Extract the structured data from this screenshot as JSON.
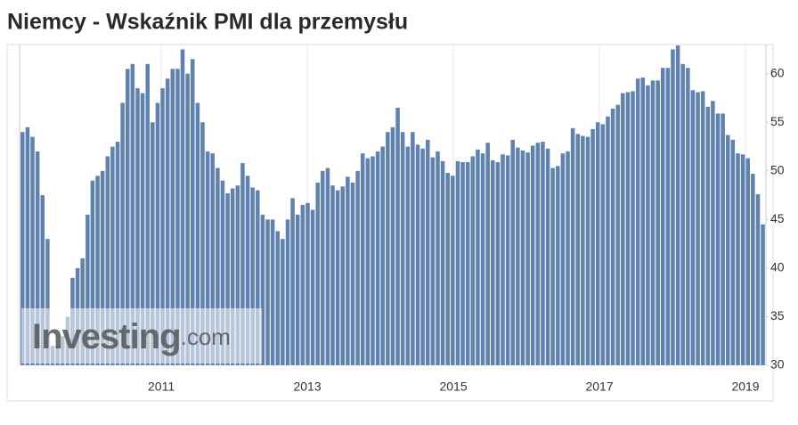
{
  "chart_data": {
    "type": "bar",
    "title": "Niemcy - Wskaźnik PMI dla przemysłu",
    "watermark": {
      "brand": "Investing",
      "suffix": ".com"
    },
    "color": "#5f82b0",
    "grid": true,
    "y_axis_side": "right",
    "x": [
      2009.1,
      2009.169,
      2009.237,
      2009.306,
      2009.374,
      2009.443,
      2009.511,
      2009.58,
      2009.648,
      2009.717,
      2009.785,
      2009.854,
      2009.922,
      2009.991,
      2010.059,
      2010.128,
      2010.196,
      2010.265,
      2010.333,
      2010.402,
      2010.47,
      2010.539,
      2010.607,
      2010.676,
      2010.744,
      2010.813,
      2010.881,
      2010.95,
      2011.018,
      2011.087,
      2011.155,
      2011.224,
      2011.292,
      2011.361,
      2011.429,
      2011.498,
      2011.566,
      2011.635,
      2011.703,
      2011.772,
      2011.84,
      2011.909,
      2011.977,
      2012.046,
      2012.114,
      2012.183,
      2012.251,
      2012.32,
      2012.388,
      2012.457,
      2012.525,
      2012.594,
      2012.662,
      2012.731,
      2012.799,
      2012.868,
      2012.936,
      2013.005,
      2013.073,
      2013.142,
      2013.21,
      2013.279,
      2013.347,
      2013.416,
      2013.484,
      2013.553,
      2013.621,
      2013.69,
      2013.758,
      2013.827,
      2013.895,
      2013.964,
      2014.032,
      2014.101,
      2014.169,
      2014.238,
      2014.306,
      2014.375,
      2014.443,
      2014.512,
      2014.58,
      2014.649,
      2014.717,
      2014.786,
      2014.854,
      2014.923,
      2014.991,
      2015.06,
      2015.128,
      2015.197,
      2015.265,
      2015.334,
      2015.402,
      2015.471,
      2015.539,
      2015.608,
      2015.676,
      2015.745,
      2015.813,
      2015.882,
      2015.95,
      2016.019,
      2016.087,
      2016.156,
      2016.224,
      2016.293,
      2016.361,
      2016.43,
      2016.498,
      2016.567,
      2016.635,
      2016.704,
      2016.772,
      2016.841,
      2016.909,
      2016.978,
      2017.046,
      2017.115,
      2017.183,
      2017.252,
      2017.32,
      2017.389,
      2017.457,
      2017.526,
      2017.594,
      2017.663,
      2017.731,
      2017.8,
      2017.868,
      2017.937,
      2018.005,
      2018.074,
      2018.142,
      2018.211,
      2018.279,
      2018.348,
      2018.416,
      2018.485,
      2018.553,
      2018.622,
      2018.69,
      2018.759,
      2018.827,
      2018.896,
      2018.964,
      2019.033,
      2019.101,
      2019.17,
      2019.238
    ],
    "values": [
      54,
      54.5,
      53.5,
      52,
      47.5,
      43,
      32,
      32,
      33,
      35,
      39,
      40,
      41,
      45.5,
      49,
      49.5,
      50,
      51.5,
      52.5,
      53,
      57,
      60.5,
      61,
      58.5,
      58,
      61,
      55,
      57,
      58.5,
      59.5,
      60.5,
      60.5,
      62.5,
      60,
      61.5,
      57,
      55,
      52,
      51.8,
      50.3,
      49,
      47.7,
      48.2,
      48.5,
      50.8,
      49.5,
      48.3,
      48,
      45.5,
      45,
      45,
      43.8,
      43,
      45,
      47.2,
      45.5,
      46.5,
      46.7,
      46,
      48.8,
      50,
      50.3,
      48.5,
      48,
      48.4,
      49.4,
      48.8,
      50,
      51.8,
      51.3,
      51.5,
      52,
      52.5,
      54,
      54.5,
      56.5,
      54,
      52.5,
      54,
      52.7,
      52.3,
      53.2,
      51.4,
      52,
      51,
      49.8,
      49.5,
      51,
      50.9,
      50.9,
      51.5,
      52.2,
      51.8,
      52.9,
      51.1,
      50.9,
      51.7,
      51.6,
      53.2,
      52.4,
      52.1,
      51.9,
      52.6,
      52.9,
      53,
      52.3,
      50.3,
      50.5,
      51.8,
      52,
      54.4,
      53.8,
      53.6,
      53.5,
      54.3,
      55,
      54.8,
      55.6,
      56.4,
      56.8,
      58,
      58.1,
      58.2,
      59.5,
      59.6,
      58.8,
      59.3,
      59.3,
      60.6,
      60.6,
      62.5,
      62.9,
      61,
      60.6,
      58.3,
      58.1,
      58.2,
      56.6,
      57.2,
      55.9,
      55.9,
      53.7,
      53.2,
      51.8,
      51.7,
      51.3,
      49.7,
      47.6,
      44.5
    ],
    "xlim": [
      2009.06,
      2019.28
    ],
    "xticks": [
      2011,
      2013,
      2015,
      2017,
      2019
    ],
    "ylim": [
      30,
      63
    ],
    "yticks": [
      30,
      35,
      40,
      45,
      50,
      55,
      60
    ]
  }
}
